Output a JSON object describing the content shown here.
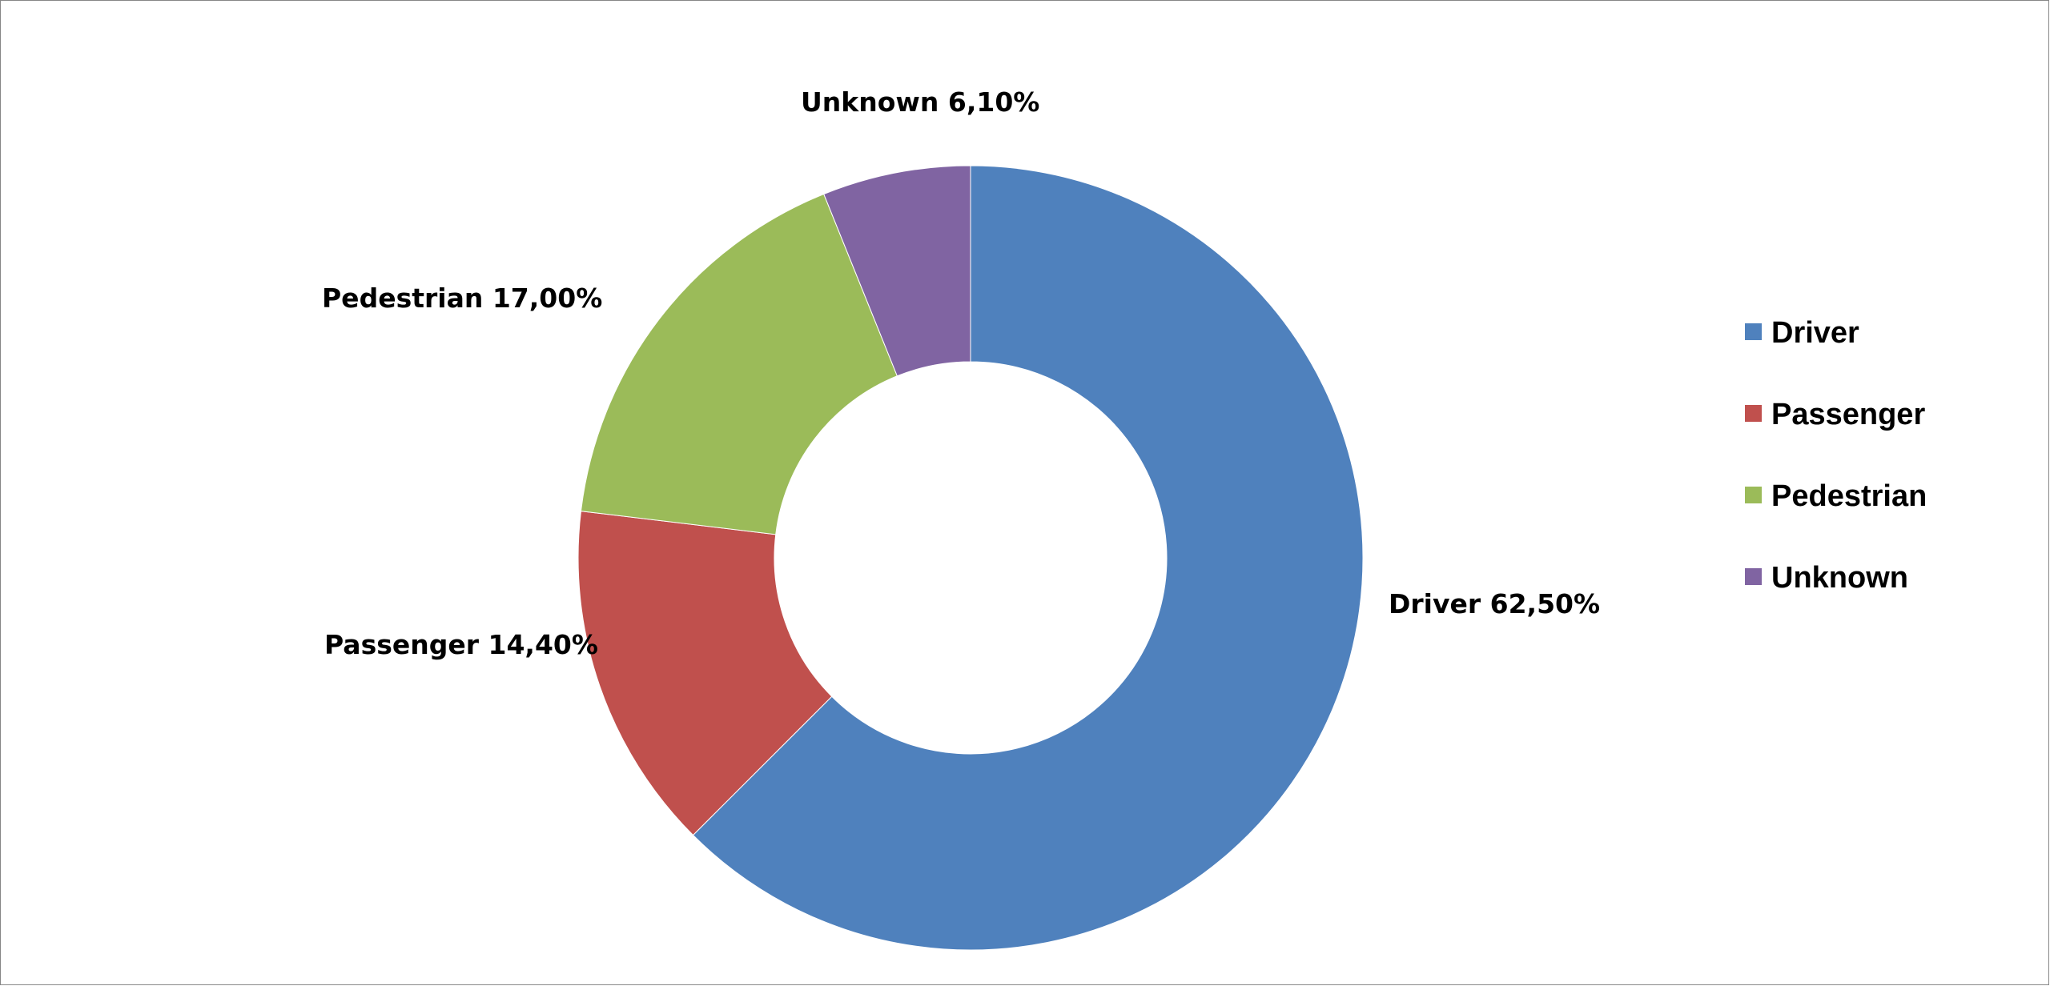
{
  "chart_data": {
    "type": "pie",
    "variant": "donut",
    "categories": [
      "Driver",
      "Passenger",
      "Pedestrian",
      "Unknown"
    ],
    "values": [
      62.5,
      14.4,
      17.0,
      6.1
    ],
    "data_labels": [
      "Driver 62,50%",
      "Passenger 14,40%",
      "Pedestrian 17,00%",
      "Unknown 6,10%"
    ],
    "colors": [
      "#4F81BD",
      "#C0504D",
      "#9BBB59",
      "#8064A2"
    ],
    "legend": {
      "placement": "right",
      "entries": [
        "Driver",
        "Passenger",
        "Pedestrian",
        "Unknown"
      ]
    }
  }
}
